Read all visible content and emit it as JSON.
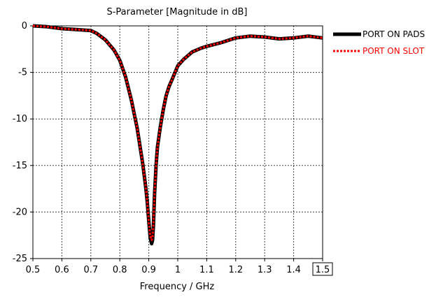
{
  "chart_data": {
    "type": "line",
    "title": "S-Parameter [Magnitude in dB]",
    "xlabel": "Frequency / GHz",
    "ylabel": "",
    "xlim": [
      0.5,
      1.5
    ],
    "ylim": [
      -25,
      0
    ],
    "x_ticks": [
      "0.5",
      "0.6",
      "0.7",
      "0.8",
      "0.9",
      "1",
      "1.1",
      "1.2",
      "1.3",
      "1.4",
      "1.5"
    ],
    "y_ticks": [
      "0",
      "-5",
      "-10",
      "-15",
      "-20",
      "-25"
    ],
    "highlighted_tick": "1.5",
    "grid": true,
    "legend_position": "top-right",
    "series": [
      {
        "name": "PORT ON PADS",
        "color": "#000000",
        "style": "solid",
        "x": [
          0.5,
          0.55,
          0.6,
          0.65,
          0.7,
          0.72,
          0.75,
          0.78,
          0.8,
          0.82,
          0.84,
          0.86,
          0.87,
          0.88,
          0.89,
          0.895,
          0.9,
          0.905,
          0.91,
          0.913,
          0.916,
          0.92,
          0.925,
          0.93,
          0.94,
          0.95,
          0.96,
          0.97,
          0.98,
          1.0,
          1.02,
          1.05,
          1.08,
          1.1,
          1.15,
          1.2,
          1.25,
          1.3,
          1.35,
          1.4,
          1.45,
          1.5
        ],
        "y": [
          0.0,
          -0.1,
          -0.3,
          -0.4,
          -0.5,
          -0.8,
          -1.5,
          -2.6,
          -3.7,
          -5.5,
          -8.0,
          -11.0,
          -13.0,
          -15.0,
          -17.5,
          -19.0,
          -21.0,
          -22.8,
          -23.4,
          -23.0,
          -21.5,
          -18.0,
          -15.0,
          -13.0,
          -10.8,
          -9.0,
          -7.5,
          -6.5,
          -5.8,
          -4.3,
          -3.6,
          -2.8,
          -2.4,
          -2.2,
          -1.8,
          -1.3,
          -1.1,
          -1.2,
          -1.4,
          -1.3,
          -1.1,
          -1.3
        ]
      },
      {
        "name": "PORT ON SLOT",
        "color": "#ff0000",
        "style": "dotted",
        "x": [
          0.5,
          0.55,
          0.6,
          0.65,
          0.7,
          0.72,
          0.75,
          0.78,
          0.8,
          0.82,
          0.84,
          0.86,
          0.87,
          0.88,
          0.89,
          0.895,
          0.9,
          0.905,
          0.91,
          0.913,
          0.916,
          0.92,
          0.925,
          0.93,
          0.94,
          0.95,
          0.96,
          0.97,
          0.98,
          1.0,
          1.02,
          1.05,
          1.08,
          1.1,
          1.15,
          1.2,
          1.25,
          1.3,
          1.35,
          1.4,
          1.45,
          1.5
        ],
        "y": [
          0.0,
          -0.1,
          -0.3,
          -0.4,
          -0.5,
          -0.8,
          -1.5,
          -2.6,
          -3.7,
          -5.5,
          -8.0,
          -11.0,
          -13.0,
          -15.0,
          -17.5,
          -19.0,
          -21.0,
          -22.6,
          -23.0,
          -22.7,
          -21.3,
          -18.0,
          -15.0,
          -13.0,
          -10.8,
          -9.0,
          -7.5,
          -6.5,
          -5.8,
          -4.3,
          -3.6,
          -2.8,
          -2.4,
          -2.2,
          -1.8,
          -1.3,
          -1.1,
          -1.2,
          -1.4,
          -1.3,
          -1.1,
          -1.3
        ]
      }
    ]
  }
}
